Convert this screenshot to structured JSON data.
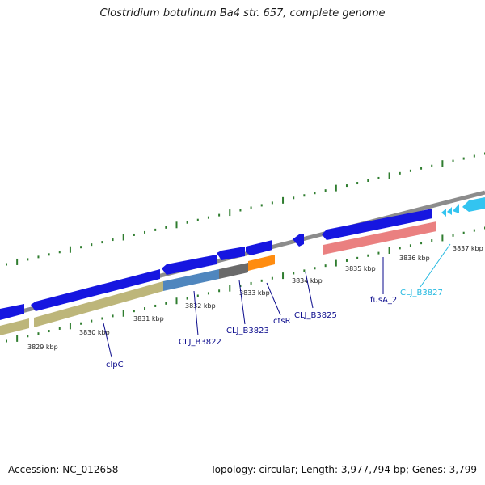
{
  "header": {
    "title": "Clostridium botulinum Ba4 str. 657, complete genome"
  },
  "footer": {
    "accession": "Accession: NC_012658",
    "summary": "Topology: circular; Length: 3,977,794 bp; Genes: 3,799"
  },
  "colors": {
    "backbone": "#8a8a8a",
    "cds_forward": "#1a1ae6",
    "tick": "#2b7a2b",
    "label_dark": "#0a0a8c",
    "label_cyan": "#22b8e0"
  },
  "ticks": [
    {
      "label": "3829 kbp"
    },
    {
      "label": "3830 kbp"
    },
    {
      "label": "3831 kbp"
    },
    {
      "label": "3832 kbp"
    },
    {
      "label": "3833 kbp"
    },
    {
      "label": "3834 kbp"
    },
    {
      "label": "3835 kbp"
    },
    {
      "label": "3836 kbp"
    },
    {
      "label": "3837 kbp"
    }
  ],
  "gene_labels": [
    {
      "name": "clpC",
      "color": "#0a0a8c"
    },
    {
      "name": "CLJ_B3822",
      "color": "#0a0a8c"
    },
    {
      "name": "CLJ_B3823",
      "color": "#0a0a8c"
    },
    {
      "name": "ctsR",
      "color": "#0a0a8c"
    },
    {
      "name": "CLJ_B3825",
      "color": "#0a0a8c"
    },
    {
      "name": "fusA_2",
      "color": "#0a0a8c"
    },
    {
      "name": "CLJ_B3827",
      "color": "#22b8e0"
    }
  ]
}
